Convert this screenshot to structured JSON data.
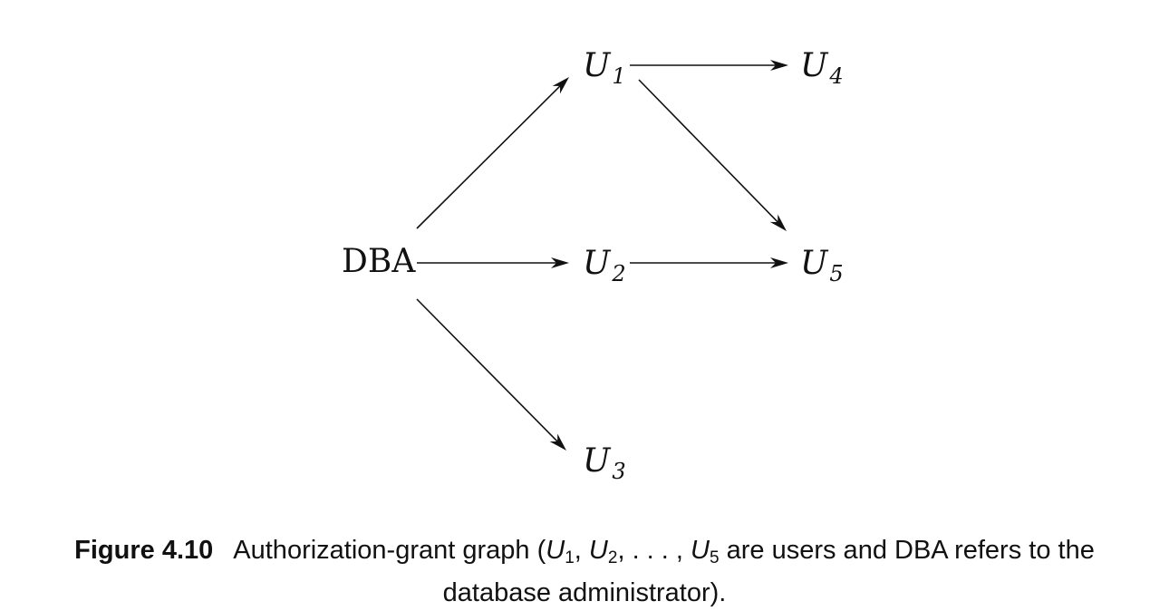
{
  "figure": {
    "nodes": [
      {
        "id": "DBA",
        "label": "DBA",
        "sub": ""
      },
      {
        "id": "U1",
        "label": "U",
        "sub": "1"
      },
      {
        "id": "U2",
        "label": "U",
        "sub": "2"
      },
      {
        "id": "U3",
        "label": "U",
        "sub": "3"
      },
      {
        "id": "U4",
        "label": "U",
        "sub": "4"
      },
      {
        "id": "U5",
        "label": "U",
        "sub": "5"
      }
    ],
    "edges": [
      {
        "from": "DBA",
        "to": "U1"
      },
      {
        "from": "DBA",
        "to": "U2"
      },
      {
        "from": "DBA",
        "to": "U3"
      },
      {
        "from": "U1",
        "to": "U4"
      },
      {
        "from": "U1",
        "to": "U5"
      },
      {
        "from": "U2",
        "to": "U5"
      }
    ]
  },
  "caption": {
    "number": "Figure 4.10",
    "text_before": "Authorization-grant graph (",
    "u_letter": "U",
    "sub1": "1",
    "sep1": ", ",
    "sub2": "2",
    "sep2": ", . . . , ",
    "sub5": "5",
    "text_after": " are users and DBA refers to the",
    "line2": "database administrator)."
  }
}
